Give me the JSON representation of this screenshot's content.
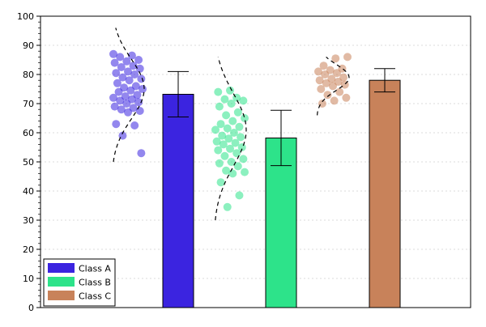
{
  "chart_data": {
    "type": "bar",
    "title": "",
    "xlabel": "",
    "ylabel": "",
    "ylim": [
      0,
      100
    ],
    "yticks": [
      0,
      10,
      20,
      30,
      40,
      50,
      60,
      70,
      80,
      90,
      100
    ],
    "grid": "horizontal dashed",
    "legend_position": "bottom-left",
    "categories": [
      "Class A",
      "Class B",
      "Class C"
    ],
    "colors": [
      "#3b24e0",
      "#2de38a",
      "#c8825a"
    ],
    "values": [
      73.2,
      58.2,
      78.0
    ],
    "errors": [
      7.8,
      9.5,
      4.0
    ],
    "scatter_points": [
      [
        87,
        86.5,
        86,
        85,
        84.5,
        84,
        83,
        82.5,
        82,
        81,
        80.5,
        80,
        79,
        78.5,
        78,
        77,
        76,
        75.5,
        75,
        74.5,
        74,
        73,
        72.5,
        72,
        71.5,
        71,
        70.5,
        70,
        69,
        68.5,
        68,
        67.5,
        67,
        63,
        62.5,
        59,
        53
      ],
      [
        74.5,
        74,
        72,
        71.5,
        71,
        70,
        69,
        67,
        66,
        65,
        64,
        63,
        62,
        61.5,
        61,
        60,
        59,
        58.5,
        58,
        57,
        56.5,
        56,
        55,
        54.5,
        54,
        53,
        52,
        51,
        50,
        49.5,
        48.5,
        47,
        46.5,
        46,
        43,
        38.5,
        34.5
      ],
      [
        86,
        85.5,
        83,
        82,
        81.5,
        81,
        80.5,
        80,
        79,
        78.5,
        78,
        77.5,
        77,
        76.5,
        76,
        75,
        74,
        73,
        72,
        71,
        70
      ]
    ],
    "density_curves": [
      {
        "ymin": 50,
        "ymax": 96,
        "mode": 75
      },
      {
        "ymin": 30,
        "ymax": 86,
        "mode": 61
      },
      {
        "ymin": 66,
        "ymax": 86,
        "mode": 79
      }
    ]
  }
}
